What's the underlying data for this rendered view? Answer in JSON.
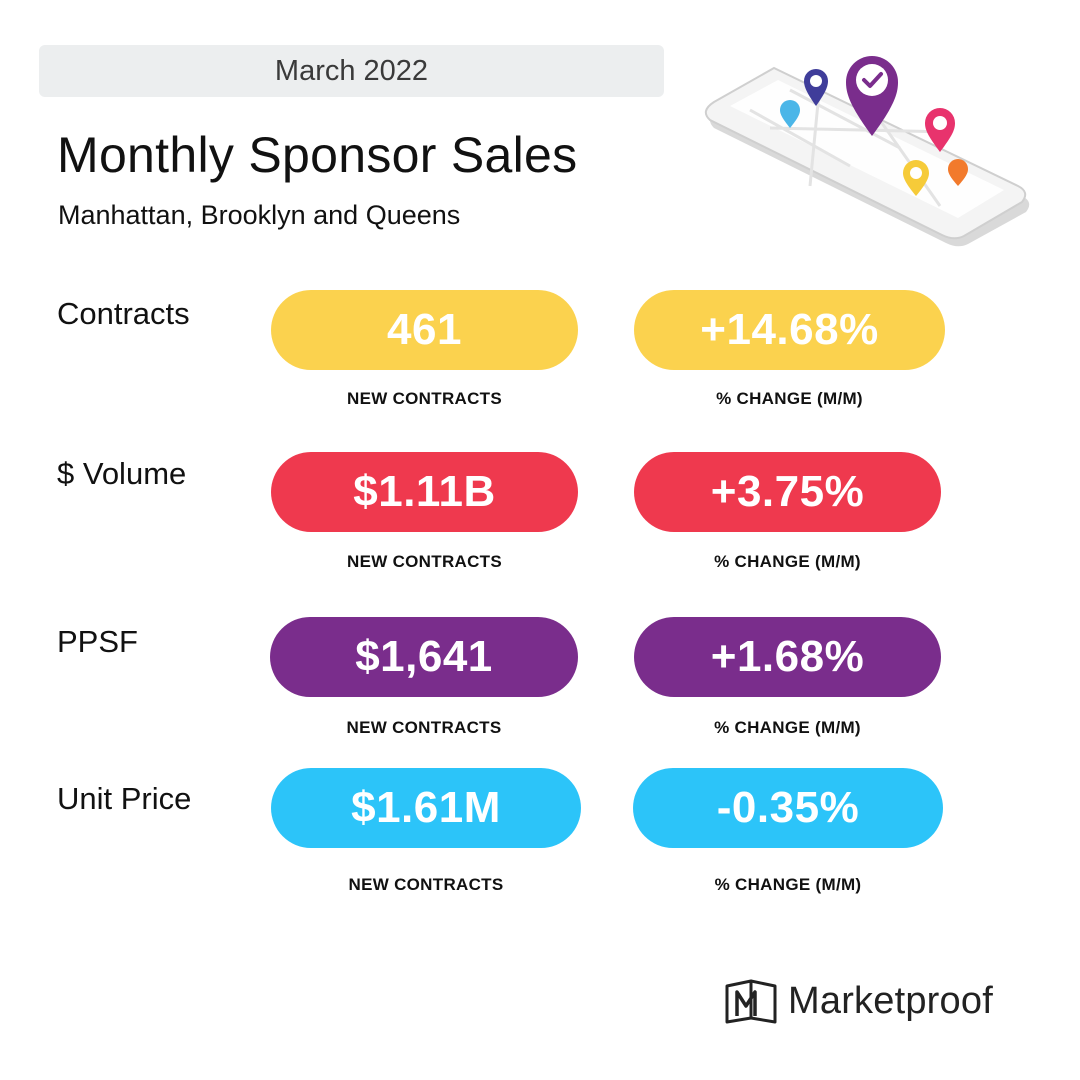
{
  "header": {
    "date": "March 2022",
    "title": "Monthly Sponsor Sales",
    "subtitle": "Manhattan, Brooklyn and Queens"
  },
  "metrics": [
    {
      "label": "Contracts",
      "value": "461",
      "value_caption": "NEW CONTRACTS",
      "change": "+14.68%",
      "change_caption": "% CHANGE (M/M)",
      "color": "#fbd24e"
    },
    {
      "label": "$ Volume",
      "value": "$1.11B",
      "value_caption": "NEW CONTRACTS",
      "change": "+3.75%",
      "change_caption": "% CHANGE (M/M)",
      "color": "#ef394e"
    },
    {
      "label": "PPSF",
      "value": "$1,641",
      "value_caption": "NEW CONTRACTS",
      "change": "+1.68%",
      "change_caption": "% CHANGE (M/M)",
      "color": "#7a2d8c"
    },
    {
      "label": "Unit Price",
      "value": "$1.61M",
      "value_caption": "NEW CONTRACTS",
      "change": "-0.35%",
      "change_caption": "% CHANGE (M/M)",
      "color": "#2cc4f9"
    }
  ],
  "illustration": {
    "icons": [
      "phone-icon",
      "map-pin-check-icon",
      "map-pin-info-icon",
      "map-pin-icon",
      "map-pin-coin-icon"
    ],
    "pin_colors": [
      "#7a2d8c",
      "#3f3d9a",
      "#4bb6e8",
      "#e8336d",
      "#f6cb39",
      "#f27a2c"
    ]
  },
  "brand": {
    "name": "Marketproof",
    "icon": "marketproof-logo-icon"
  }
}
